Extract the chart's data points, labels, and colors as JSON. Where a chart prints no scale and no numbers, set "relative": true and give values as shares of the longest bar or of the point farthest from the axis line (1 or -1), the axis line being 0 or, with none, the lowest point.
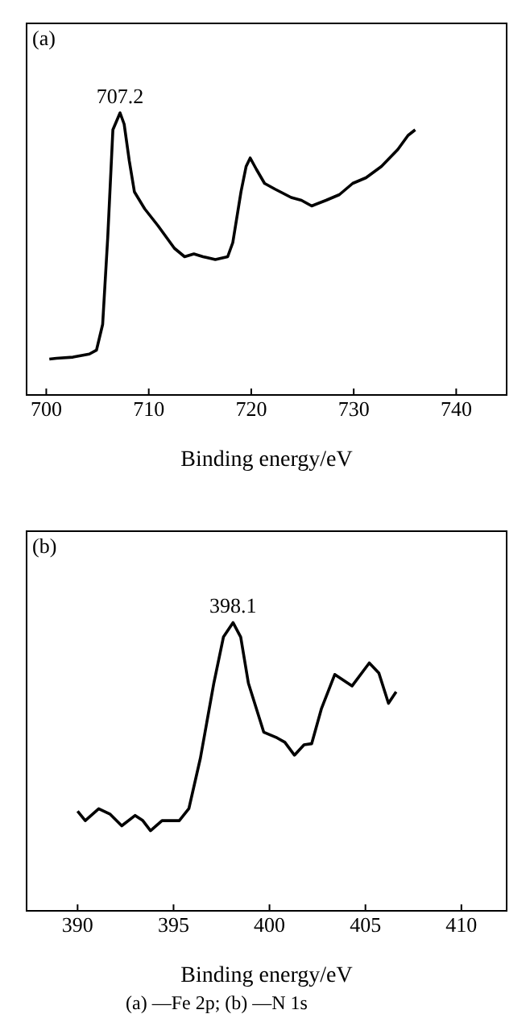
{
  "chart_data": [
    {
      "type": "line",
      "title": "(a)",
      "xlabel": "Binding energy/eV",
      "relative": true,
      "xlim": [
        698,
        745
      ],
      "xticks": [
        700,
        710,
        720,
        730,
        740
      ],
      "color": "#000000",
      "marker": "none",
      "grid": false,
      "legend": false,
      "x": [
        700.3,
        701.0,
        702.6,
        704.2,
        704.9,
        705.5,
        706.0,
        706.5,
        707.2,
        707.6,
        708.1,
        708.6,
        709.6,
        710.9,
        712.5,
        713.5,
        714.4,
        715.3,
        716.5,
        717.7,
        718.2,
        719.0,
        719.5,
        719.9,
        720.5,
        721.3,
        722.3,
        723.9,
        724.9,
        725.9,
        727.3,
        728.6,
        729.9,
        731.2,
        732.7,
        734.3,
        735.3,
        736.0
      ],
      "values": [
        0.127,
        0.13,
        0.134,
        0.145,
        0.159,
        0.25,
        0.56,
        0.94,
        1.0,
        0.96,
        0.83,
        0.72,
        0.66,
        0.6,
        0.52,
        0.49,
        0.5,
        0.49,
        0.48,
        0.49,
        0.54,
        0.72,
        0.81,
        0.84,
        0.8,
        0.75,
        0.73,
        0.7,
        0.69,
        0.67,
        0.69,
        0.71,
        0.75,
        0.77,
        0.81,
        0.87,
        0.92,
        0.94
      ],
      "annotations": [
        {
          "text": "707.2",
          "x": 707.2,
          "y": 1.0
        }
      ]
    },
    {
      "type": "line",
      "title": "(b)",
      "xlabel": "Binding energy/eV",
      "relative": true,
      "xlim": [
        387.3,
        412.4
      ],
      "xticks": [
        390,
        395,
        400,
        405,
        410
      ],
      "color": "#000000",
      "marker": "none",
      "grid": false,
      "legend": false,
      "x": [
        390.0,
        390.4,
        391.1,
        391.7,
        392.3,
        393.0,
        393.4,
        393.8,
        394.4,
        395.3,
        395.8,
        396.4,
        397.1,
        397.6,
        398.1,
        398.5,
        398.9,
        399.7,
        400.4,
        400.8,
        401.3,
        401.8,
        402.2,
        402.7,
        403.4,
        404.3,
        405.2,
        405.7,
        406.2,
        406.6
      ],
      "values": [
        0.346,
        0.313,
        0.354,
        0.335,
        0.295,
        0.331,
        0.313,
        0.278,
        0.313,
        0.313,
        0.355,
        0.53,
        0.79,
        0.95,
        1.0,
        0.95,
        0.79,
        0.62,
        0.6,
        0.585,
        0.54,
        0.576,
        0.58,
        0.7,
        0.82,
        0.78,
        0.86,
        0.825,
        0.72,
        0.76
      ],
      "annotations": [
        {
          "text": "398.1",
          "x": 398.1,
          "y": 1.0
        },
        "(a) —Fe 2p; (b) —N 1s"
      ]
    }
  ]
}
